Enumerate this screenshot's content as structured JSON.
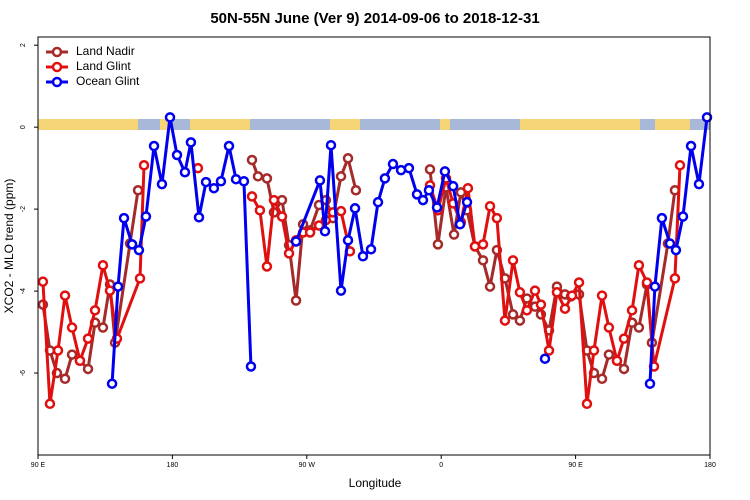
{
  "chart_data": {
    "type": "line",
    "title": "50N-55N June (Ver 9)   2014-09-06 to 2018-12-31",
    "x_label": "Longitude",
    "y_label": "XCO2 - MLO trend (ppm)",
    "xlim": [
      90,
      540
    ],
    "ylim": [
      -8.0,
      2.2
    ],
    "xticks": [
      {
        "value": 90,
        "label": "90 E"
      },
      180,
      {
        "value": 270,
        "label": "90 W"
      },
      {
        "value": 360,
        "label": "0"
      },
      {
        "value": 450,
        "label": "90 E"
      },
      {
        "value": 540,
        "label": "180"
      }
    ],
    "yticks": [
      2,
      0,
      -2,
      -4,
      -6
    ],
    "legend": "top-left",
    "series": [
      {
        "name": "Land Nadir",
        "color": "#a52a2a",
        "x": [
          93.3,
          98,
          102.7,
          108.1,
          112.8,
          118.1,
          123.5,
          128.2,
          133.5,
          138.2,
          141.6,
          151.6,
          157,
          null,
          233.3,
          237.3,
          243.3,
          248,
          253.4,
          258.1,
          262.8,
          267.5,
          272.2,
          278.2,
          282.8,
          287.5,
          292.9,
          297.6,
          302.9,
          null,
          352.5,
          357.8,
          363.2,
          368.6,
          373.2,
          377.3,
          382.6,
          388,
          392.7,
          397.3,
          402.7,
          408.1,
          412.7,
          417.4,
          422.8,
          426.8,
          432.2,
          437.5,
          442.9,
          446.9,
          452.3,
          457.6,
          462.3,
          467.7,
          472.3,
          477.7,
          482.4,
          487.8,
          492.4,
          497.8,
          501.1,
          511.8,
          516.5
        ],
        "values": [
          -4.33,
          -5.45,
          -6.0,
          -6.14,
          -5.55,
          -5.7,
          -5.9,
          -4.77,
          -4.89,
          -3.84,
          -5.26,
          -2.84,
          -1.54,
          null,
          -0.8,
          -1.2,
          -1.25,
          -2.08,
          -1.78,
          -2.88,
          -4.23,
          -2.37,
          -2.52,
          -1.9,
          -1.78,
          -2.22,
          -1.2,
          -0.76,
          -1.54,
          null,
          -1.03,
          -2.86,
          -1.47,
          -2.62,
          -1.59,
          -2.03,
          -2.91,
          -3.25,
          -3.89,
          -3.0,
          -3.69,
          -4.57,
          -4.72,
          -4.18,
          -4.38,
          -4.57,
          -4.96,
          -3.89,
          -4.08,
          -4.13,
          -4.08,
          -5.45,
          -6.0,
          -6.14,
          -5.55,
          -5.7,
          -5.9,
          -4.77,
          -4.89,
          -3.84,
          -5.26,
          -2.84,
          -1.54
        ]
      },
      {
        "name": "Land Glint",
        "color": "#e01010",
        "x": [
          93.3,
          98,
          103.4,
          108.1,
          112.8,
          118.1,
          123.5,
          128.2,
          133.5,
          138.2,
          142.9,
          158.3,
          161,
          null,
          197.1,
          null,
          233.3,
          238.6,
          243.3,
          248,
          253.4,
          258.1,
          262.8,
          267.5,
          272.2,
          278.2,
          282.8,
          287.5,
          292.9,
          298.9,
          null,
          352.5,
          357.8,
          363.2,
          368,
          373.2,
          377.9,
          382.6,
          388,
          392.7,
          397.3,
          402.7,
          408.1,
          412.7,
          417.4,
          422.8,
          426.8,
          432.2,
          437.5,
          442.9,
          447.6,
          452.3,
          457.6,
          462.3,
          467.7,
          472.3,
          477.7,
          482.4,
          487.8,
          492.4,
          497.8,
          502.5,
          516.5,
          519.9
        ],
        "values": [
          -3.77,
          -6.75,
          -5.45,
          -4.11,
          -4.89,
          -5.7,
          -5.16,
          -4.47,
          -3.37,
          -3.99,
          -5.16,
          -3.69,
          -0.93,
          null,
          -1.0,
          null,
          -1.69,
          -2.03,
          -3.4,
          -1.78,
          -2.18,
          -3.08,
          -2.76,
          -2.57,
          -2.57,
          -2.4,
          -2.27,
          -2.08,
          -2.05,
          -3.03,
          null,
          -1.42,
          -2.03,
          -1.25,
          -1.86,
          -2.32,
          -1.49,
          -2.91,
          -2.86,
          -1.93,
          -2.22,
          -4.72,
          -3.25,
          -4.03,
          -4.47,
          -3.99,
          -4.33,
          -5.45,
          -4.03,
          -4.43,
          -4.11,
          -3.79,
          -6.75,
          -5.45,
          -4.11,
          -4.89,
          -5.7,
          -5.16,
          -4.47,
          -3.37,
          -3.79,
          -5.84,
          -3.69,
          -0.93
        ]
      },
      {
        "name": "Ocean Glint",
        "color": "#0000ee",
        "x": [
          139.6,
          143.6,
          147.6,
          153,
          157.6,
          162.3,
          167.7,
          173,
          178.4,
          183.1,
          188.4,
          192.4,
          197.8,
          202.5,
          207.8,
          212.5,
          217.9,
          222.6,
          227.9,
          232.6,
          null,
          262.8,
          278.8,
          282.2,
          286.2,
          292.9,
          297.6,
          302.3,
          307.6,
          313,
          317.7,
          322.3,
          327.7,
          333.1,
          338.4,
          343.8,
          347.8,
          351.8,
          357.2,
          362.5,
          368,
          372.6,
          377.3,
          null,
          429.5,
          null,
          499.8,
          503.1,
          507.8,
          513.2,
          517.2,
          521.9,
          527.3,
          532.6,
          538
        ],
        "values": [
          -6.26,
          -3.89,
          -2.22,
          -2.86,
          -3.0,
          -2.18,
          -0.46,
          -1.39,
          0.24,
          -0.68,
          -1.1,
          -0.37,
          -2.2,
          -1.34,
          -1.49,
          -1.32,
          -0.46,
          -1.27,
          -1.32,
          -5.84,
          null,
          -2.79,
          -1.3,
          -2.54,
          -0.44,
          -3.99,
          -2.76,
          -1.98,
          -3.15,
          -2.98,
          -1.83,
          -1.25,
          -0.9,
          -1.05,
          -1.0,
          -1.64,
          -1.78,
          -1.54,
          -1.96,
          -1.08,
          -1.44,
          -2.37,
          -1.83,
          null,
          -5.65,
          null,
          -6.26,
          -3.89,
          -2.22,
          -2.84,
          -3.0,
          -2.18,
          -0.46,
          -1.39,
          0.24
        ]
      }
    ]
  }
}
